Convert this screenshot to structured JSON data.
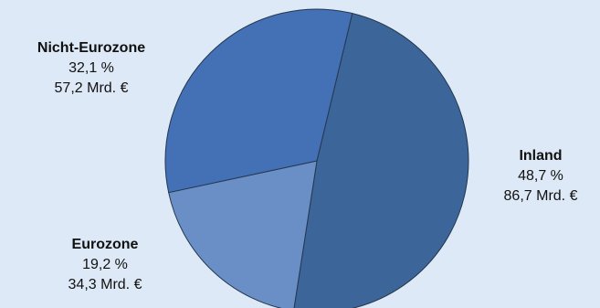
{
  "chart_data": {
    "type": "pie",
    "start_angle_deg": 13.5,
    "direction": "clockwise",
    "colors": {
      "edge": "#24384f",
      "background": "#dde9f6"
    },
    "slices": [
      {
        "name": "Inland",
        "percent": "48,7 %",
        "value": 48.7,
        "amount": "86,7 Mrd. €",
        "color": "#3c6599"
      },
      {
        "name": "Eurozone",
        "percent": "19,2 %",
        "value": 19.2,
        "amount": "34,3 Mrd. €",
        "color": "#6a8fc7"
      },
      {
        "name": "Nicht-Eurozone",
        "percent": "32,1 %",
        "value": 32.1,
        "amount": "57,2 Mrd. €",
        "color": "#4470b5"
      }
    ]
  }
}
